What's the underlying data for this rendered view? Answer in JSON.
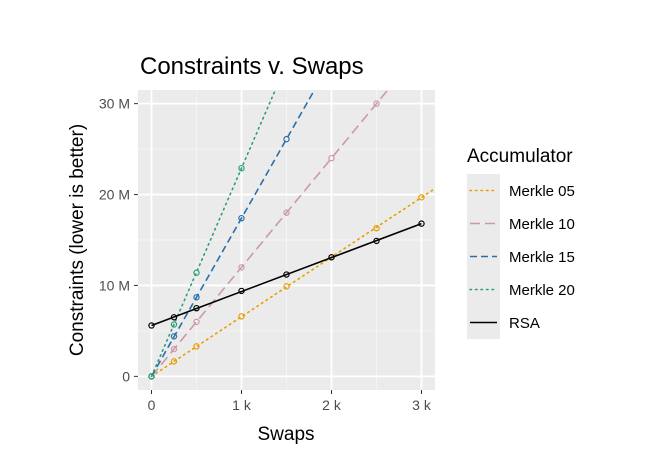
{
  "chart_data": {
    "type": "line",
    "title": "Constraints v. Swaps",
    "xlabel": "Swaps",
    "ylabel": "Constraints (lower is better)",
    "xlim": [
      -150,
      3150
    ],
    "ylim": [
      -1500000,
      31500000
    ],
    "x_ticks": [
      0,
      1000,
      2000,
      3000
    ],
    "x_tick_labels": [
      "0",
      "1 k",
      "2 k",
      "3 k"
    ],
    "y_ticks": [
      0,
      10000000,
      20000000,
      30000000
    ],
    "y_tick_labels": [
      "0",
      "10 M",
      "20 M",
      "30 M"
    ],
    "grid": true,
    "legend": {
      "title": "Accumulator",
      "position": "right"
    },
    "series": [
      {
        "name": "Merkle 05",
        "color": "#E69F00",
        "dash": "dotted",
        "x": [
          0,
          250,
          500,
          1000,
          1500,
          2000,
          2500,
          3000
        ],
        "values": [
          0,
          1650000,
          3300000,
          6600000,
          9900000,
          13100000,
          16300000,
          19700000
        ],
        "slope_per_swap": 6560
      },
      {
        "name": "Merkle 10",
        "color": "#CC99AA",
        "dash": "longdash",
        "x": [
          0,
          250,
          500,
          1000,
          1500,
          2000,
          2500
        ],
        "values": [
          0,
          3000000,
          6000000,
          12000000,
          18000000,
          24000000,
          30000000
        ],
        "slope_per_swap": 12000
      },
      {
        "name": "Merkle 15",
        "color": "#2C6FA8",
        "dash": "dashed",
        "x": [
          0,
          250,
          500,
          1000,
          1500
        ],
        "values": [
          0,
          4400000,
          8700000,
          17400000,
          26100000
        ],
        "slope_per_swap": 17400
      },
      {
        "name": "Merkle 20",
        "color": "#2E9E7A",
        "dash": "dotted",
        "x": [
          0,
          250,
          500,
          1000
        ],
        "values": [
          0,
          5700000,
          11400000,
          22900000
        ],
        "slope_per_swap": 22900
      },
      {
        "name": "RSA",
        "color": "#000000",
        "dash": "solid",
        "x": [
          0,
          250,
          500,
          1000,
          1500,
          2000,
          2500,
          3000
        ],
        "values": [
          5600000,
          6500000,
          7500000,
          9400000,
          11200000,
          13100000,
          14900000,
          16800000
        ]
      }
    ]
  }
}
